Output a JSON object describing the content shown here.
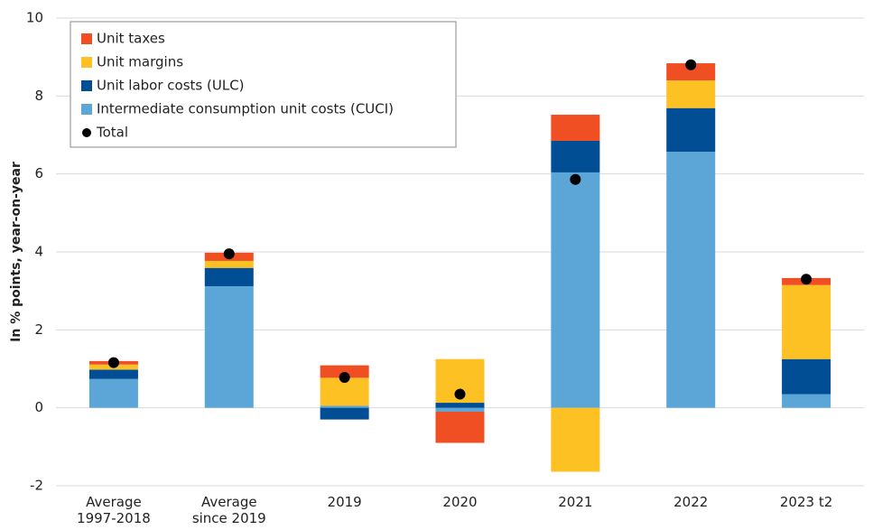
{
  "chart_data": {
    "type": "stacked_bar",
    "ylabel": "In % points, year-on-year",
    "categories": [
      "Average\n1997-2018",
      "Average\nsince 2019",
      "2019",
      "2020",
      "2021",
      "2022",
      "2023 t2"
    ],
    "series": [
      {
        "name": "Unit taxes",
        "color": "#f04e23",
        "values": [
          0.09,
          0.21,
          0.32,
          -0.8,
          0.67,
          0.44,
          0.18
        ]
      },
      {
        "name": "Unit margins",
        "color": "#fdc124",
        "values": [
          0.13,
          0.18,
          0.72,
          1.12,
          -1.64,
          0.71,
          1.9
        ]
      },
      {
        "name": "Unit labor costs (ULC)",
        "color": "#024e95",
        "values": [
          0.24,
          0.47,
          -0.3,
          0.13,
          0.81,
          1.12,
          0.9
        ]
      },
      {
        "name": "Intermediate consumption unit costs (CUCI)",
        "color": "#5ba6d7",
        "values": [
          0.74,
          3.12,
          0.05,
          -0.1,
          6.04,
          6.57,
          0.35
        ]
      }
    ],
    "totals": {
      "name": "Total",
      "color": "#000000",
      "values": [
        1.16,
        3.95,
        0.78,
        0.35,
        5.86,
        8.8,
        3.3
      ]
    },
    "ylim": [
      -2,
      10
    ],
    "yticks": [
      -2,
      0,
      2,
      4,
      6,
      8,
      10
    ],
    "grid": true,
    "legend": "upper left"
  }
}
